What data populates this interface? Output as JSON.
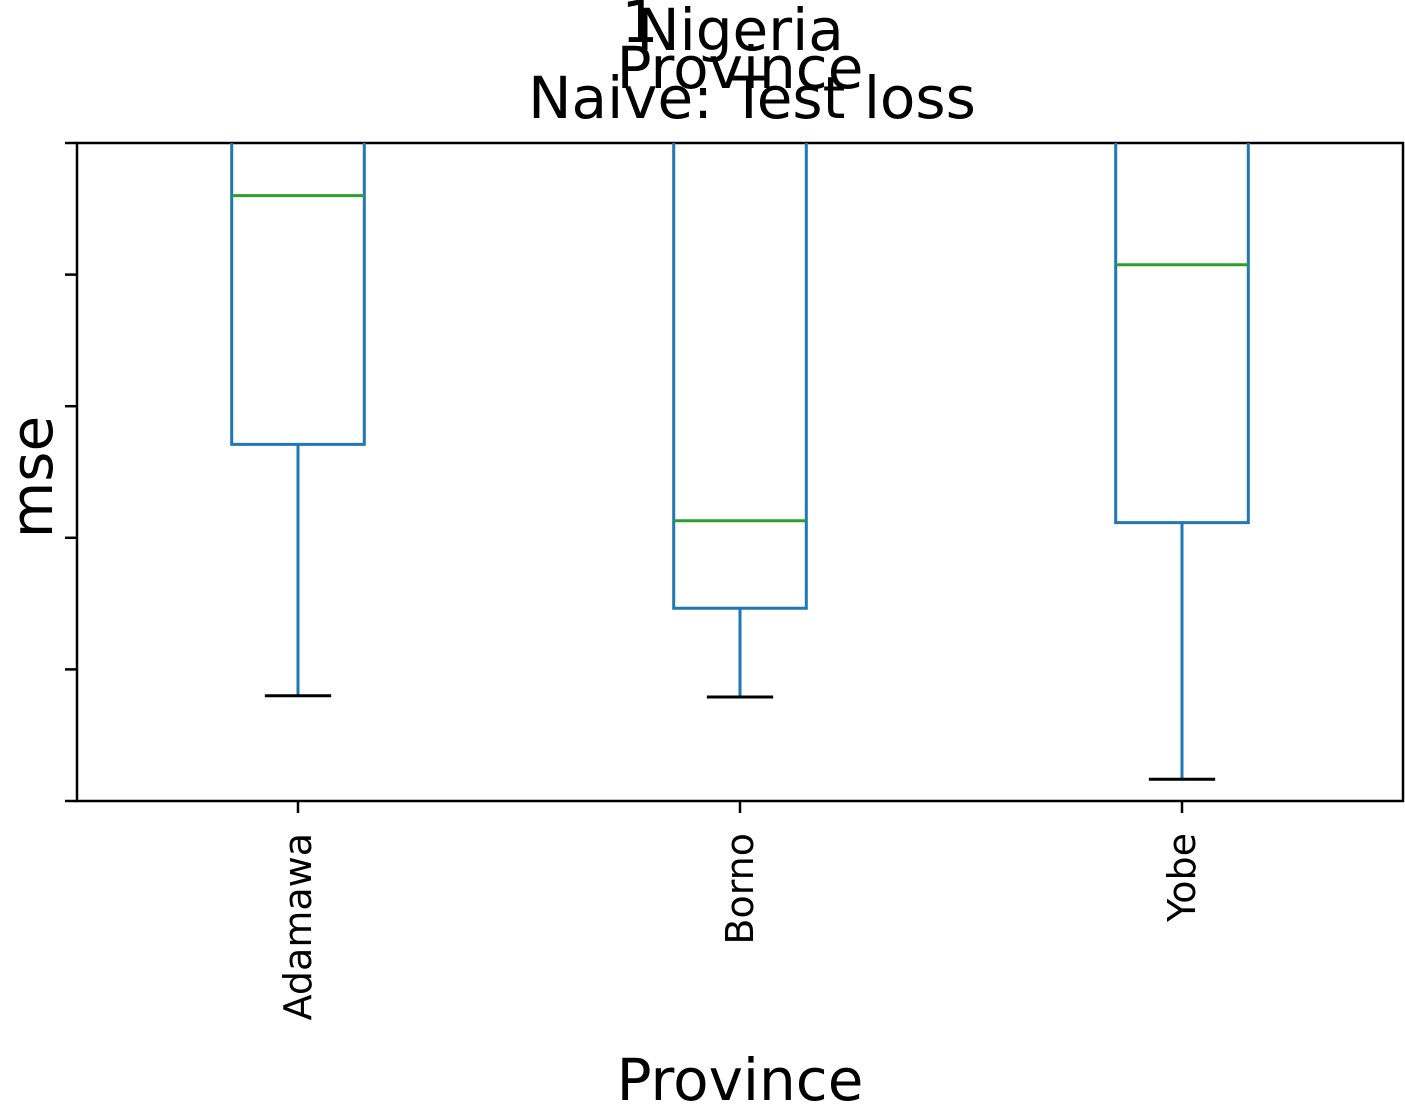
{
  "chart_data": {
    "type": "boxplot",
    "title_lines": [
      "1",
      "Nigeria",
      "Province",
      "Naive: Test loss"
    ],
    "xlabel": "Province",
    "ylabel": "mse",
    "categories": [
      "Adamawa",
      "Borno",
      "Yobe"
    ],
    "y_tick_labels_visible": false,
    "y_tick_count": 6,
    "ylim": [
      0,
      1
    ],
    "grid": false,
    "legend": "none",
    "series": [
      {
        "category": "Adamawa",
        "whisker_low": 0.16,
        "q1": 0.542,
        "median": 0.92,
        "q3": 1.0,
        "whisker_high": 1.0
      },
      {
        "category": "Borno",
        "whisker_low": 0.158,
        "q1": 0.293,
        "median": 0.426,
        "q3": 1.0,
        "whisker_high": 1.0
      },
      {
        "category": "Yobe",
        "whisker_low": 0.033,
        "q1": 0.423,
        "median": 0.815,
        "q3": 1.0,
        "whisker_high": 1.0
      }
    ],
    "colors": {
      "box": "#1f77b4",
      "median": "#2ca02c",
      "cap": "#000000",
      "axis": "#000000"
    }
  }
}
